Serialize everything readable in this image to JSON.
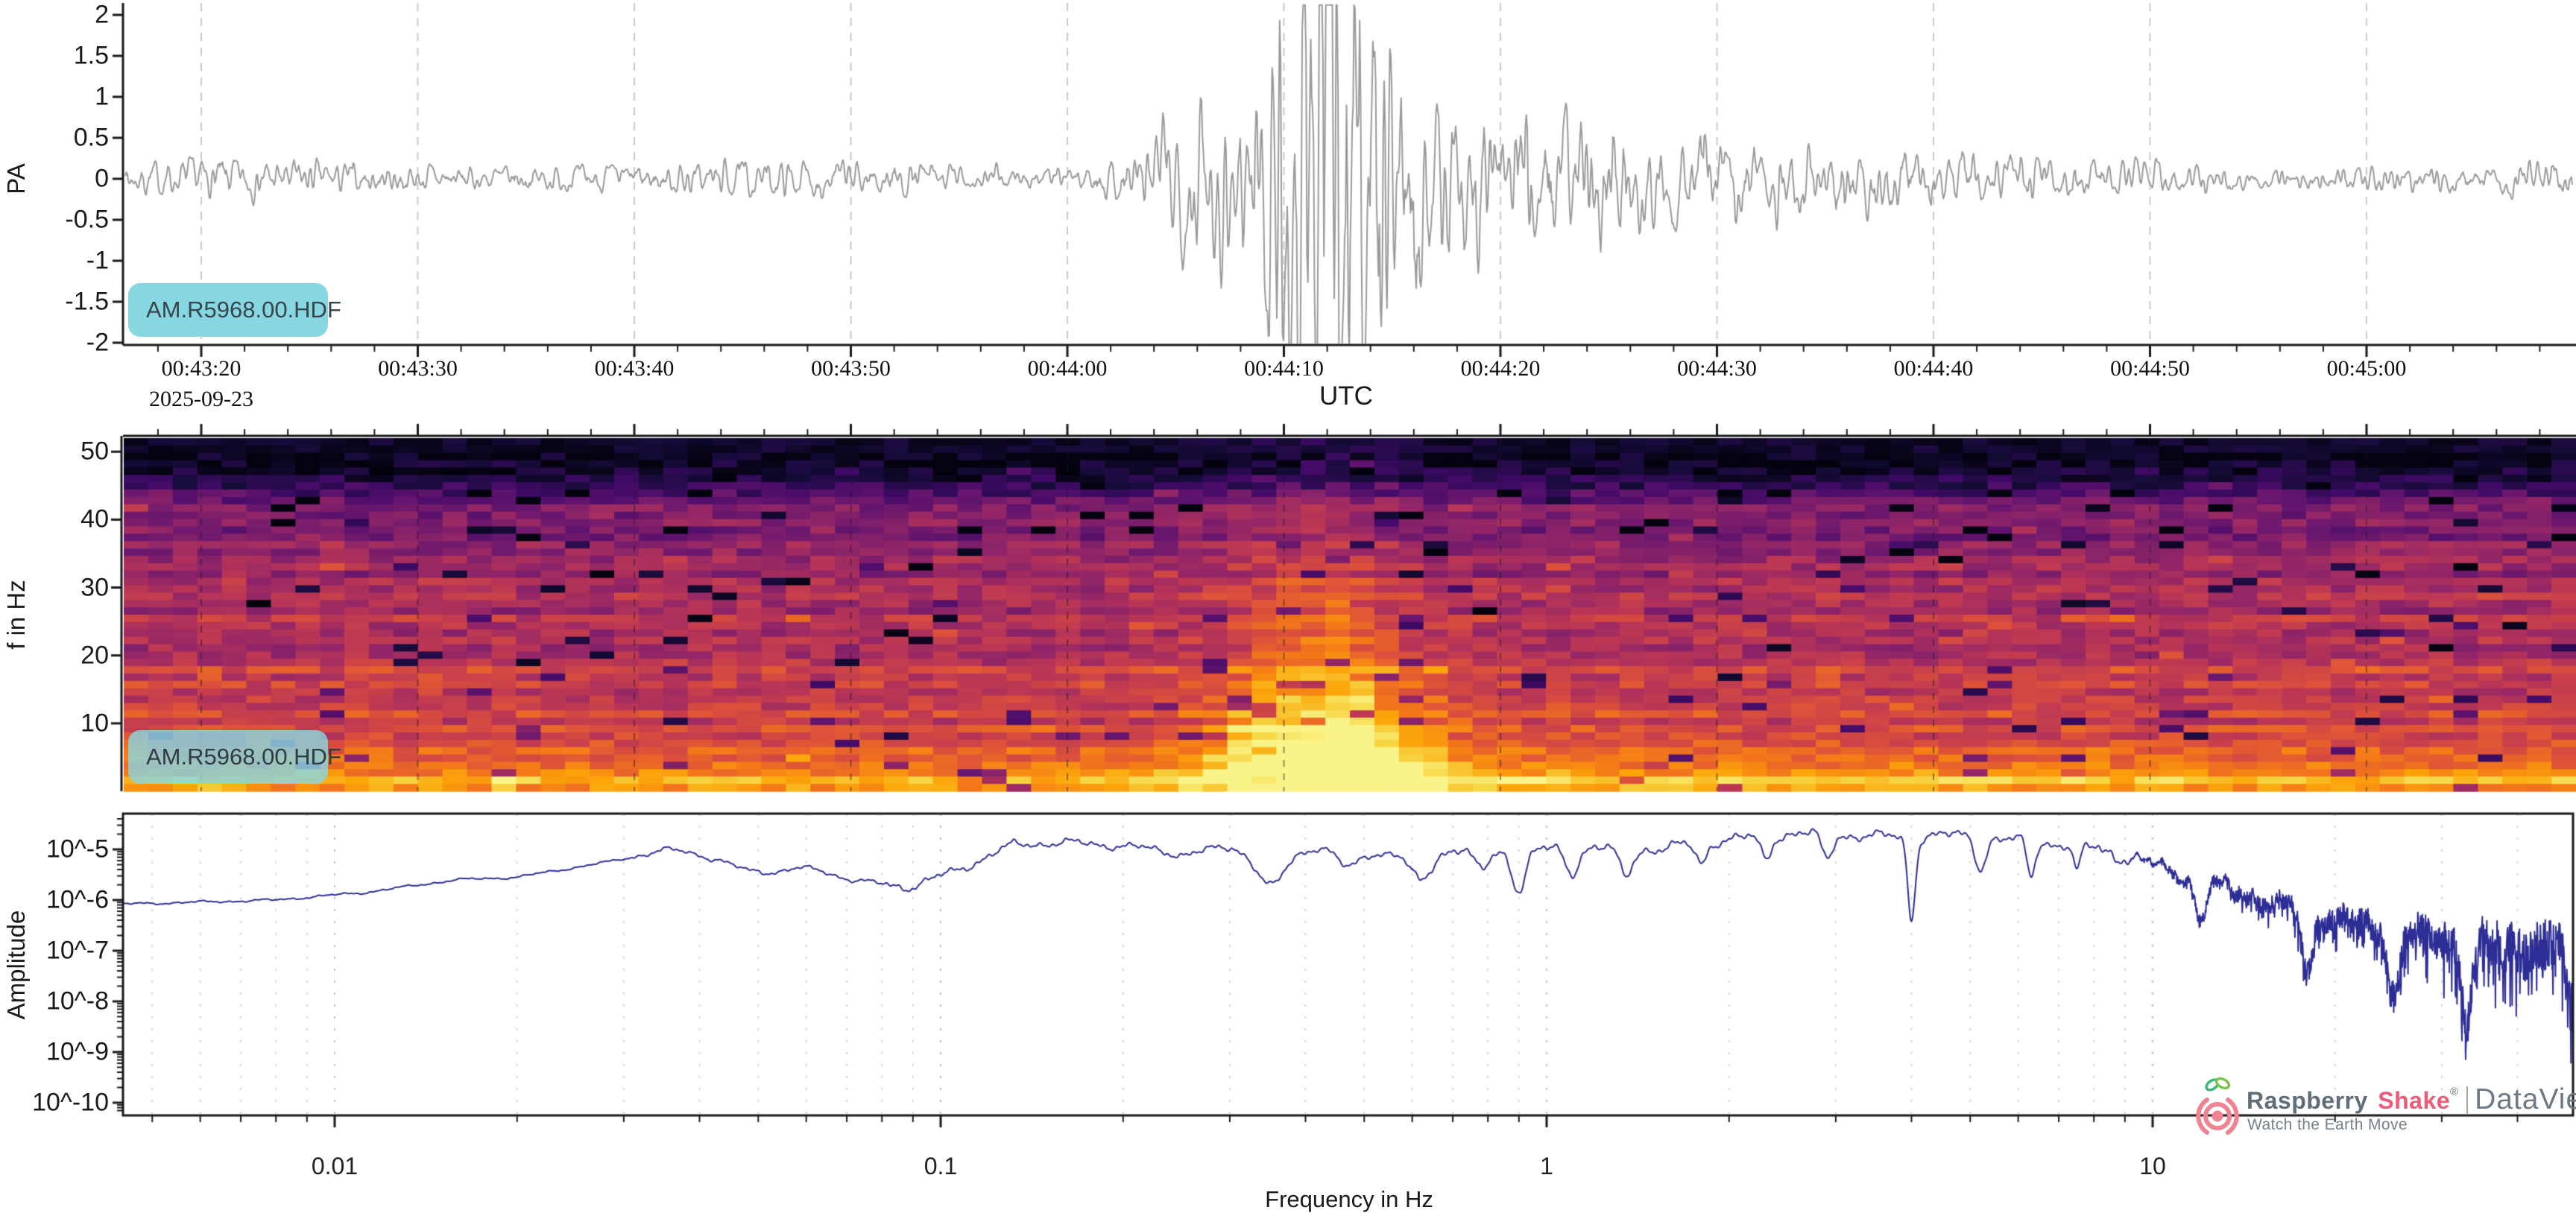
{
  "panels": {
    "seismogram": {
      "station_badge": "AM.R5968.00.HDF",
      "ylabel": "PA",
      "y_ticks": [
        "2",
        "1.5",
        "1",
        "0.5",
        "0",
        "-0.5",
        "-1",
        "-1.5",
        "-2"
      ],
      "time_ticks": [
        "00:43:20",
        "00:43:30",
        "00:43:40",
        "00:43:50",
        "00:44:00",
        "00:44:10",
        "00:44:20",
        "00:44:30",
        "00:44:40",
        "00:44:50",
        "00:45:00"
      ],
      "date_label": "2025-09-23",
      "xlabel": "UTC",
      "line_color": "#9a9a9a",
      "grid_color": "#c9c9c9",
      "axis_color": "#1a1a1a",
      "badge_bg": "#87d7e2",
      "badge_text_color": "#37444b"
    },
    "spectrogram": {
      "station_badge": "AM.R5968.00.HDF",
      "ylabel": "f in Hz",
      "y_ticks": [
        "10",
        "20",
        "30",
        "40",
        "50"
      ],
      "badge_bg": "rgba(138,214,225,0.82)",
      "badge_text_color": "#2e3b41"
    },
    "spectrum": {
      "ylabel": "Amplitude",
      "xlabel": "Frequency in Hz",
      "y_ticks": [
        "10^-5",
        "10^-6",
        "10^-7",
        "10^-8",
        "10^-9",
        "10^-10"
      ],
      "x_ticks": [
        "0.01",
        "0.1",
        "1",
        "10"
      ],
      "line_color": "#2d2d96",
      "grid_minor_color": "#d8d8d8",
      "grid_major_color": "#c2c2c2"
    }
  },
  "logo": {
    "brand_primary": "Raspberry",
    "brand_secondary": "Shake",
    "registered": "®",
    "divider": "|",
    "product": "DataView",
    "tagline": "Watch the Earth Move",
    "colors": {
      "primary": "#5f6e79",
      "secondary": "#ee5b76",
      "product": "#6b7a85",
      "divider": "#9aa5ad",
      "tagline": "#75828c",
      "icon_pink": "#f08292",
      "icon_green": "#7cc24b",
      "icon_teal": "#3cb878"
    }
  },
  "chart_data": [
    {
      "id": "seismogram",
      "type": "line",
      "station": "AM.R5968.00.HDF",
      "ylabel": "PA",
      "ylim": [
        -2.2,
        2.2
      ],
      "y_tick_values": [
        2,
        1.5,
        1,
        0.5,
        0,
        -0.5,
        -1,
        -1.5,
        -2
      ],
      "x_start_utc": "00:43:16",
      "x_end_utc": "00:45:10",
      "x_tick_interval_s": 10,
      "x_minor_tick_s": 2,
      "background_noise_amplitude": 0.06,
      "event": {
        "precursor_utc": "00:44:06",
        "peak_utc": "00:44:11",
        "max_amplitude": 2.1,
        "min_amplitude": -2.1,
        "coda_end_utc": "00:44:45"
      },
      "seed": 7
    },
    {
      "id": "spectrogram",
      "type": "heatmap",
      "station": "AM.R5968.00.HDF",
      "ylabel": "f in Hz",
      "flim": [
        0,
        52
      ],
      "y_tick_values": [
        10,
        20,
        30,
        40,
        50
      ],
      "colormap": "inferno",
      "colormap_stops": [
        [
          0,
          "#000004"
        ],
        [
          0.1,
          "#160b39"
        ],
        [
          0.2,
          "#420a68"
        ],
        [
          0.3,
          "#6a176e"
        ],
        [
          0.4,
          "#932667"
        ],
        [
          0.5,
          "#bc3754"
        ],
        [
          0.6,
          "#dd513a"
        ],
        [
          0.7,
          "#f37819"
        ],
        [
          0.8,
          "#fca50a"
        ],
        [
          0.9,
          "#f6d746"
        ],
        [
          1,
          "#fcffa4"
        ]
      ],
      "background_profile": [
        [
          0,
          0.82
        ],
        [
          2,
          0.78
        ],
        [
          4,
          0.72
        ],
        [
          6,
          0.66
        ],
        [
          9,
          0.58
        ],
        [
          14,
          0.53
        ],
        [
          22,
          0.5
        ],
        [
          30,
          0.45
        ],
        [
          37,
          0.38
        ],
        [
          43,
          0.28
        ],
        [
          47,
          0.16
        ],
        [
          50,
          0.08
        ],
        [
          52,
          0.05
        ]
      ],
      "event": {
        "t_center_s": 51.5,
        "t_sigma_s": 5.0,
        "f_scale_hz": 13,
        "amp": 0.55,
        "amp2": 0.22,
        "f_scale2_hz": 34,
        "coda_amp": 0.1,
        "coda_tau_s": 25
      },
      "n_cols": 100,
      "n_rows": 48,
      "seed": 13
    },
    {
      "id": "amplitude_spectrum",
      "type": "line",
      "xscale": "log",
      "yscale": "log",
      "xlabel": "Frequency in Hz",
      "ylabel": "Amplitude",
      "xlim_hz": [
        0.0045,
        50
      ],
      "ylim_log10": [
        -10.2,
        -4.35
      ],
      "x_tick_values": [
        0.01,
        0.1,
        1,
        10
      ],
      "y_ticks_log10": [
        -5,
        -6,
        -7,
        -8,
        -9,
        -10
      ],
      "envelope_log10": [
        [
          -2.35,
          -6.08
        ],
        [
          -2.1,
          -6.0
        ],
        [
          -1.95,
          -5.85
        ],
        [
          -1.8,
          -5.6
        ],
        [
          -1.7,
          -5.55
        ],
        [
          -1.55,
          -5.25
        ],
        [
          -1.45,
          -5.0
        ],
        [
          -1.38,
          -5.1
        ],
        [
          -1.3,
          -4.97
        ],
        [
          -1.15,
          -5.6
        ],
        [
          -1.05,
          -5.75
        ],
        [
          -0.95,
          -5.3
        ],
        [
          -0.88,
          -4.9
        ],
        [
          -0.78,
          -4.87
        ],
        [
          -0.68,
          -4.95
        ],
        [
          -0.6,
          -5.1
        ],
        [
          -0.52,
          -4.95
        ],
        [
          -0.45,
          -5.2
        ],
        [
          -0.38,
          -4.95
        ],
        [
          -0.3,
          -5.05
        ],
        [
          -0.22,
          -5.1
        ],
        [
          -0.15,
          -4.98
        ],
        [
          -0.05,
          -5.05
        ],
        [
          0.05,
          -4.95
        ],
        [
          0.18,
          -5.0
        ],
        [
          0.3,
          -4.8
        ],
        [
          0.42,
          -4.68
        ],
        [
          0.55,
          -4.75
        ],
        [
          0.68,
          -4.72
        ],
        [
          0.8,
          -4.85
        ],
        [
          0.9,
          -4.95
        ],
        [
          1.0,
          -5.3
        ],
        [
          1.08,
          -5.6
        ],
        [
          1.18,
          -6.0
        ],
        [
          1.3,
          -6.4
        ],
        [
          1.45,
          -6.75
        ],
        [
          1.6,
          -6.9
        ],
        [
          1.7,
          -7.05
        ]
      ],
      "notch_dips": [
        [
          0.05,
          -0.45,
          0.02
        ],
        [
          0.35,
          -0.55,
          0.01
        ],
        [
          0.47,
          -0.35,
          0.008
        ],
        [
          0.62,
          -0.55,
          0.008
        ],
        [
          0.78,
          -0.4,
          0.006
        ],
        [
          0.9,
          -0.75,
          0.005
        ],
        [
          1.1,
          -0.5,
          0.005
        ],
        [
          1.35,
          -0.55,
          0.005
        ],
        [
          1.8,
          -0.4,
          0.004
        ],
        [
          2.3,
          -0.45,
          0.004
        ],
        [
          2.9,
          -0.5,
          0.004
        ],
        [
          4.0,
          -1.6,
          0.003
        ],
        [
          5.2,
          -0.6,
          0.004
        ],
        [
          6.3,
          -0.7,
          0.003
        ],
        [
          7.5,
          -0.5,
          0.003
        ],
        [
          12,
          -0.8,
          0.004
        ],
        [
          18,
          -1.2,
          0.004
        ],
        [
          25,
          -1.3,
          0.004
        ],
        [
          33,
          -1.5,
          0.004
        ]
      ],
      "seed": 99
    }
  ]
}
